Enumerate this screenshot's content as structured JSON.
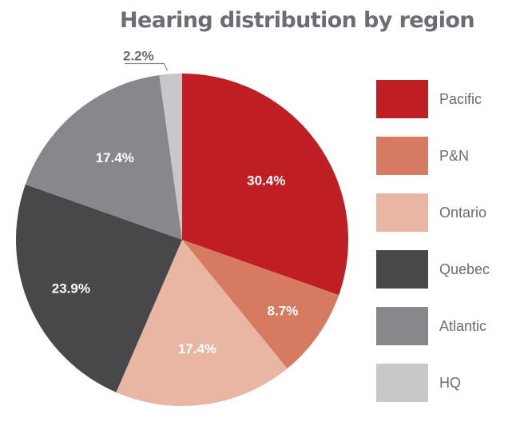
{
  "title": "Hearing distribution by region",
  "legend": [
    {
      "label": "Pacific",
      "color": "#be1e24"
    },
    {
      "label": "P&N",
      "color": "#d67a62"
    },
    {
      "label": "Ontario",
      "color": "#e9b6a4"
    },
    {
      "label": "Quebec",
      "color": "#48474a"
    },
    {
      "label": "Atlantic",
      "color": "#88878c"
    },
    {
      "label": "HQ",
      "color": "#c8c8ca"
    }
  ],
  "chart_data": {
    "type": "pie",
    "title": "Hearing distribution by region",
    "categories": [
      "Pacific",
      "P&N",
      "Ontario",
      "Quebec",
      "Atlantic",
      "HQ"
    ],
    "values": [
      30.4,
      8.7,
      17.4,
      23.9,
      17.4,
      2.2
    ],
    "labels": [
      "30.4%",
      "8.7%",
      "17.4%",
      "23.9%",
      "17.4%",
      "2.2%"
    ],
    "colors": [
      "#be1e24",
      "#d67a62",
      "#e9b6a4",
      "#48474a",
      "#88878c",
      "#c8c8ca"
    ],
    "start_angle": "12 o'clock, clockwise",
    "legend_position": "right"
  }
}
